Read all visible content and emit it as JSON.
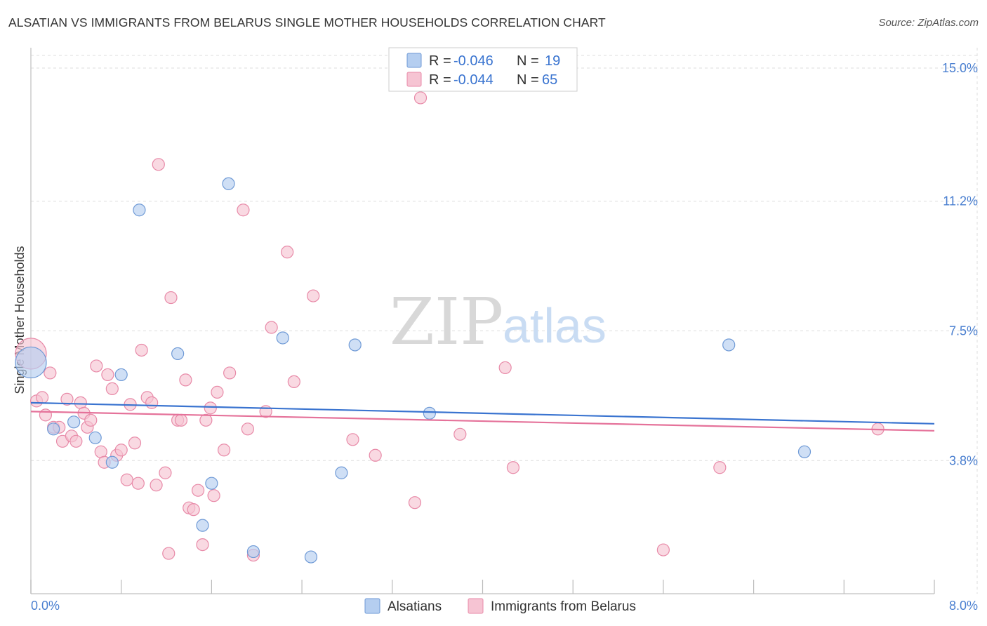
{
  "header": {
    "title": "ALSATIAN VS IMMIGRANTS FROM BELARUS SINGLE MOTHER HOUSEHOLDS CORRELATION CHART",
    "source": "Source: ZipAtlas.com"
  },
  "watermark": {
    "zip": "ZIP",
    "atlas": "atlas"
  },
  "colors": {
    "blue_fill": "#b5cef0",
    "blue_stroke": "#6f9ad6",
    "blue_line": "#3a74d0",
    "pink_fill": "#f6c4d3",
    "pink_stroke": "#e88aa8",
    "pink_line": "#e5729a",
    "grid": "#dddddd",
    "accent_text": "#3a74d0"
  },
  "stats_legend": [
    {
      "r_label": "R = ",
      "r_value": "-0.046",
      "n_label": "N = ",
      "n_value": "19"
    },
    {
      "r_label": "R = ",
      "r_value": "-0.044",
      "n_label": "N = ",
      "n_value": "65"
    }
  ],
  "chart_data": {
    "type": "scatter",
    "title": "ALSATIAN VS IMMIGRANTS FROM BELARUS SINGLE MOTHER HOUSEHOLDS CORRELATION CHART",
    "xlabel": "",
    "ylabel": "Single Mother Households",
    "xlim": [
      0.0,
      8.0
    ],
    "ylim": [
      0.0,
      15.5
    ],
    "x_tick_labels": [
      "0.0%",
      "8.0%"
    ],
    "x_ticks": [
      0.0,
      8.0
    ],
    "y_ticks": [
      3.8,
      7.5,
      11.2,
      15.0
    ],
    "y_tick_labels": [
      "3.8%",
      "7.5%",
      "11.2%",
      "15.0%"
    ],
    "grid": true,
    "legend_position": "bottom-center",
    "series": [
      {
        "name": "Alsatians",
        "color": "#6f9ad6",
        "trend": {
          "x0": 0.0,
          "y0": 5.45,
          "x1": 8.0,
          "y1": 4.85
        },
        "points": [
          {
            "x": 0.0,
            "y": 6.6,
            "big": true
          },
          {
            "x": 0.2,
            "y": 4.7
          },
          {
            "x": 0.38,
            "y": 4.9
          },
          {
            "x": 0.57,
            "y": 4.45
          },
          {
            "x": 0.72,
            "y": 3.75
          },
          {
            "x": 0.8,
            "y": 6.25
          },
          {
            "x": 0.96,
            "y": 10.95
          },
          {
            "x": 1.3,
            "y": 6.85
          },
          {
            "x": 1.52,
            "y": 1.95
          },
          {
            "x": 1.6,
            "y": 3.15
          },
          {
            "x": 1.75,
            "y": 11.7
          },
          {
            "x": 1.97,
            "y": 1.2
          },
          {
            "x": 2.23,
            "y": 7.3
          },
          {
            "x": 2.48,
            "y": 1.05
          },
          {
            "x": 2.75,
            "y": 3.45
          },
          {
            "x": 2.87,
            "y": 7.1
          },
          {
            "x": 3.53,
            "y": 5.15
          },
          {
            "x": 6.18,
            "y": 7.1
          },
          {
            "x": 6.85,
            "y": 4.05
          }
        ]
      },
      {
        "name": "Immigrants from Belarus",
        "color": "#e88aa8",
        "trend": {
          "x0": 0.0,
          "y0": 5.2,
          "x1": 8.0,
          "y1": 4.65
        },
        "points": [
          {
            "x": 0.0,
            "y": 6.85,
            "big": true
          },
          {
            "x": 0.05,
            "y": 5.5
          },
          {
            "x": 0.1,
            "y": 5.6
          },
          {
            "x": 0.13,
            "y": 5.1
          },
          {
            "x": 0.17,
            "y": 6.3
          },
          {
            "x": 0.2,
            "y": 4.75
          },
          {
            "x": 0.25,
            "y": 4.75
          },
          {
            "x": 0.28,
            "y": 4.35
          },
          {
            "x": 0.32,
            "y": 5.55
          },
          {
            "x": 0.36,
            "y": 4.5
          },
          {
            "x": 0.4,
            "y": 4.35
          },
          {
            "x": 0.44,
            "y": 5.45
          },
          {
            "x": 0.47,
            "y": 5.15
          },
          {
            "x": 0.5,
            "y": 4.75
          },
          {
            "x": 0.53,
            "y": 4.95
          },
          {
            "x": 0.58,
            "y": 6.5
          },
          {
            "x": 0.62,
            "y": 4.05
          },
          {
            "x": 0.65,
            "y": 3.75
          },
          {
            "x": 0.68,
            "y": 6.25
          },
          {
            "x": 0.72,
            "y": 5.85
          },
          {
            "x": 0.76,
            "y": 3.95
          },
          {
            "x": 0.8,
            "y": 4.1
          },
          {
            "x": 0.85,
            "y": 3.25
          },
          {
            "x": 0.88,
            "y": 5.4
          },
          {
            "x": 0.92,
            "y": 4.3
          },
          {
            "x": 0.95,
            "y": 3.15
          },
          {
            "x": 0.98,
            "y": 6.95
          },
          {
            "x": 1.03,
            "y": 5.6
          },
          {
            "x": 1.07,
            "y": 5.45
          },
          {
            "x": 1.11,
            "y": 3.1
          },
          {
            "x": 1.13,
            "y": 12.25
          },
          {
            "x": 1.19,
            "y": 3.45
          },
          {
            "x": 1.22,
            "y": 1.15
          },
          {
            "x": 1.24,
            "y": 8.45
          },
          {
            "x": 1.3,
            "y": 4.95
          },
          {
            "x": 1.33,
            "y": 4.95
          },
          {
            "x": 1.37,
            "y": 6.1
          },
          {
            "x": 1.4,
            "y": 2.45
          },
          {
            "x": 1.44,
            "y": 2.4
          },
          {
            "x": 1.48,
            "y": 2.95
          },
          {
            "x": 1.52,
            "y": 1.4
          },
          {
            "x": 1.55,
            "y": 4.95
          },
          {
            "x": 1.59,
            "y": 5.3
          },
          {
            "x": 1.62,
            "y": 2.8
          },
          {
            "x": 1.65,
            "y": 5.75
          },
          {
            "x": 1.71,
            "y": 4.1
          },
          {
            "x": 1.76,
            "y": 6.3
          },
          {
            "x": 1.88,
            "y": 10.95
          },
          {
            "x": 1.92,
            "y": 4.7
          },
          {
            "x": 1.97,
            "y": 1.1
          },
          {
            "x": 2.08,
            "y": 5.2
          },
          {
            "x": 2.13,
            "y": 7.6
          },
          {
            "x": 2.27,
            "y": 9.75
          },
          {
            "x": 2.33,
            "y": 6.05
          },
          {
            "x": 2.5,
            "y": 8.5
          },
          {
            "x": 2.85,
            "y": 4.4
          },
          {
            "x": 3.05,
            "y": 3.95
          },
          {
            "x": 3.4,
            "y": 2.6
          },
          {
            "x": 3.45,
            "y": 14.15
          },
          {
            "x": 3.8,
            "y": 4.55
          },
          {
            "x": 4.2,
            "y": 6.45
          },
          {
            "x": 4.27,
            "y": 3.6
          },
          {
            "x": 5.6,
            "y": 1.25
          },
          {
            "x": 6.1,
            "y": 3.6
          },
          {
            "x": 7.5,
            "y": 4.7
          }
        ]
      }
    ]
  }
}
